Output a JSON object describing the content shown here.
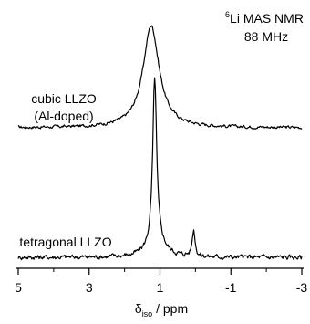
{
  "chart_data": {
    "type": "line",
    "title": {
      "sup": "6",
      "line1": "Li MAS NMR",
      "line2": "88 MHz"
    },
    "xlabel": {
      "symbol": "δ",
      "sub": "iso",
      "unit": " / ppm"
    },
    "xlim": [
      5,
      -3
    ],
    "x_ticks": [
      5,
      3,
      1,
      -1,
      -3
    ],
    "x_tick_labels": [
      "5",
      "3",
      "1",
      "-1",
      "-3"
    ],
    "x_minor_ticks": [
      4,
      2,
      0,
      -2
    ],
    "grid": false,
    "series": [
      {
        "name": "cubic LLZO",
        "sublabel": "(Al-doped)",
        "peaks": [
          {
            "center": 1.25,
            "width": 0.55,
            "height": 1.0
          }
        ],
        "noise": 0.012
      },
      {
        "name": "tetragonal LLZO",
        "peaks": [
          {
            "center": 1.15,
            "width": 0.13,
            "height": 1.0
          },
          {
            "center": 1.1,
            "width": 0.55,
            "height": 0.1
          },
          {
            "center": 0.05,
            "width": 0.1,
            "height": 0.16
          }
        ],
        "noise": 0.012
      }
    ]
  }
}
